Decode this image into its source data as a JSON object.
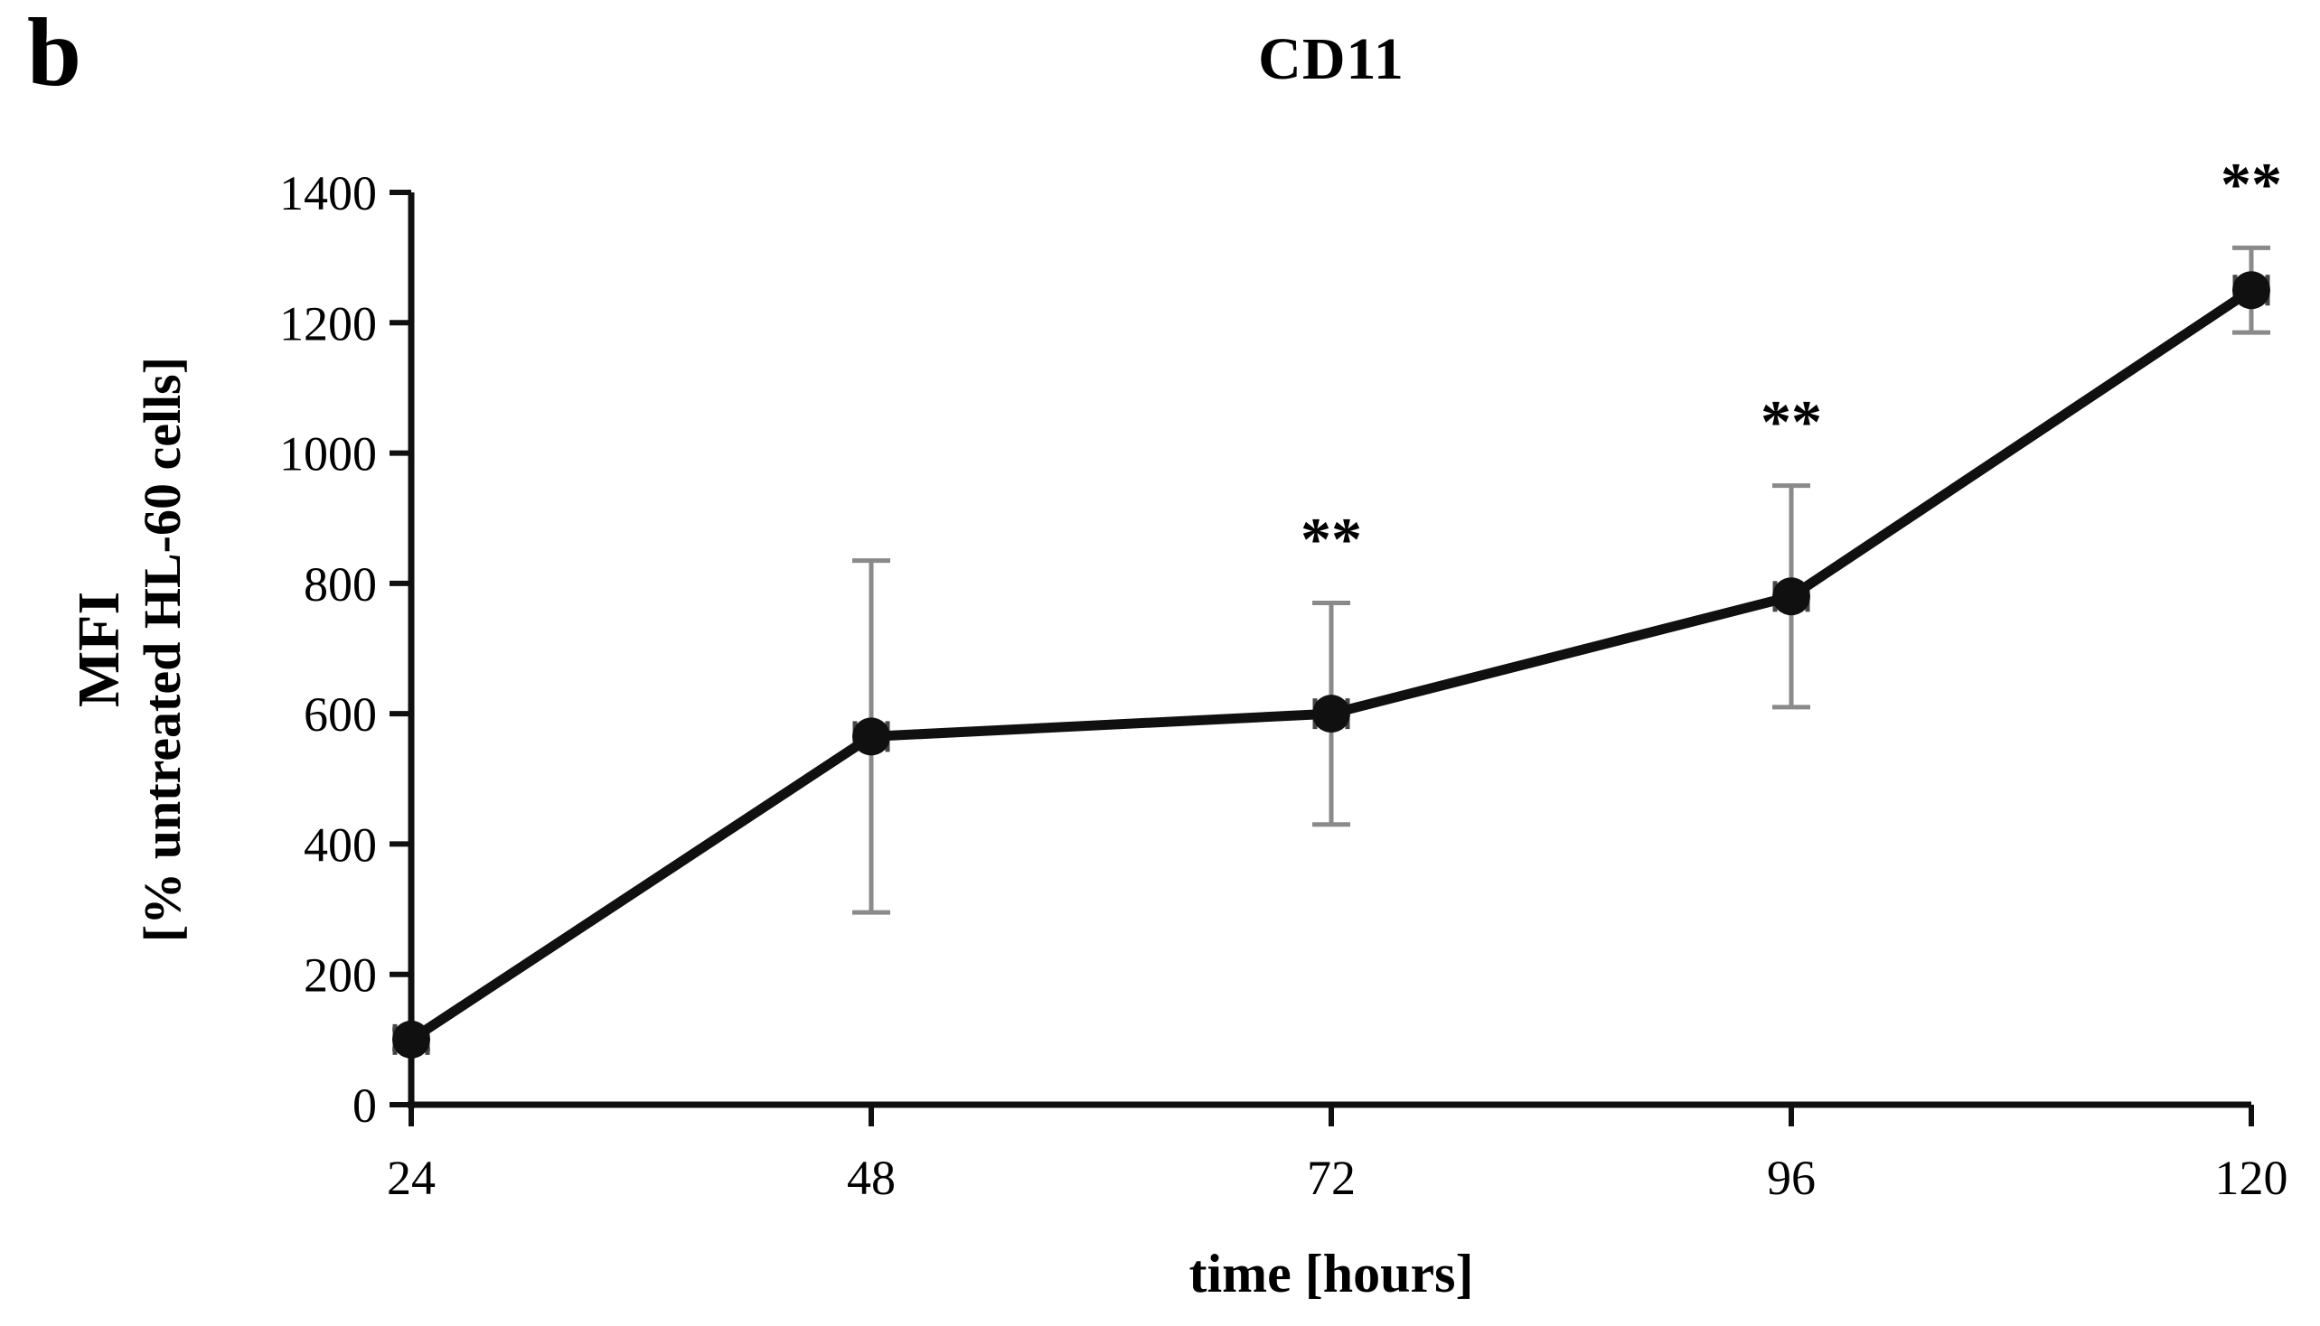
{
  "panel_label": "b",
  "chart_data": {
    "type": "line",
    "title": "CD11",
    "xlabel": "time [hours]",
    "ylabel_line1": "MFI",
    "ylabel_line2": "[% untreated HL-60 cells]",
    "x": [
      24,
      48,
      72,
      96,
      120
    ],
    "series": [
      {
        "name": "CD11 MFI (% of untreated HL-60 cells)",
        "values": [
          100,
          565,
          600,
          780,
          1250
        ],
        "errors": [
          15,
          270,
          170,
          170,
          65
        ]
      }
    ],
    "significance": [
      {
        "x": 72,
        "label": "**"
      },
      {
        "x": 96,
        "label": "**"
      },
      {
        "x": 120,
        "label": "**"
      }
    ],
    "ylim": [
      0,
      1400
    ],
    "yticks": [
      0,
      200,
      400,
      600,
      800,
      1000,
      1200,
      1400
    ],
    "xticks": [
      24,
      48,
      72,
      96,
      120
    ],
    "grid": false,
    "legend": "none",
    "marker": "filled-circle",
    "colors": {
      "line": "#101010",
      "marker": "#101010",
      "error": "#8a8a8a",
      "xerror": "#454545",
      "axis": "#101010",
      "text": "#000000"
    }
  }
}
